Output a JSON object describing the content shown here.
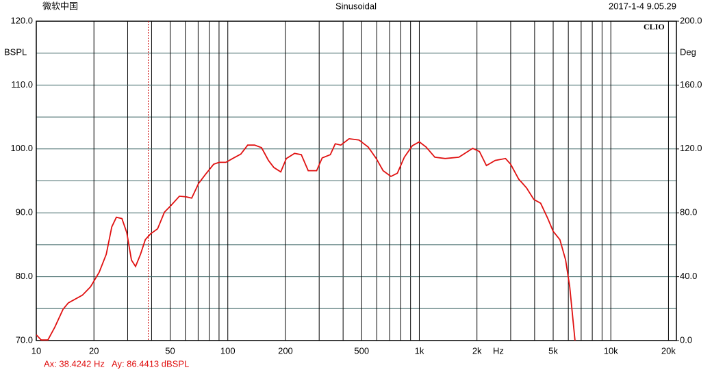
{
  "chart_data": {
    "type": "line",
    "header_left": "微软中国",
    "title": "Sinusoidal",
    "header_right": "2017-1-4 9.05.29",
    "brand": "CLIO",
    "ylabel": "BSPL",
    "y2label": "Deg",
    "xunit": "Hz",
    "log_x": true,
    "grid": true,
    "xlim": [
      10,
      22000
    ],
    "ylim": [
      70,
      120
    ],
    "y2lim": [
      0,
      200
    ],
    "xticks": [
      10,
      20,
      50,
      100,
      200,
      500,
      {
        "value": 1000,
        "label": "1k"
      },
      {
        "value": 2000,
        "label": "2k"
      },
      {
        "value": 5000,
        "label": "5k"
      },
      {
        "value": 10000,
        "label": "10k"
      },
      {
        "value": 20000,
        "label": "20k"
      }
    ],
    "xgrid_minor": [
      30,
      40,
      60,
      70,
      80,
      90,
      300,
      400,
      600,
      700,
      800,
      900,
      3000,
      4000,
      6000,
      7000,
      8000,
      9000
    ],
    "yticks": [
      {
        "value": 70,
        "label": "70.0"
      },
      {
        "value": 80,
        "label": "80.0"
      },
      {
        "value": 90,
        "label": "90.0"
      },
      {
        "value": 100,
        "label": "100.0"
      },
      {
        "value": 110,
        "label": "110.0"
      },
      {
        "value": 120,
        "label": "120.0"
      }
    ],
    "ygrid_minor": [
      75,
      85,
      95,
      105,
      115
    ],
    "y2ticks": [
      {
        "value": 0,
        "label": "0.0"
      },
      {
        "value": 40,
        "label": "40.0"
      },
      {
        "value": 80,
        "label": "80.0"
      },
      {
        "value": 120,
        "label": "120.0"
      },
      {
        "value": 160,
        "label": "160.0"
      },
      {
        "value": 200,
        "label": "200.0"
      }
    ],
    "cursor_x": 38.4242,
    "cursor_color": "#cc0000",
    "annotation": "Ax: 38.4242 Hz   Ay: 86.4413 dBSPL",
    "series": [
      {
        "name": "SPL",
        "color": "#e01010",
        "x": [
          10,
          10.6,
          11.5,
          12.5,
          13.8,
          14.7,
          17.4,
          19.2,
          21.3,
          23.2,
          24.8,
          26.2,
          28,
          29.7,
          31.4,
          33,
          35,
          37.1,
          39.5,
          43,
          46.7,
          50.7,
          55.9,
          60.7,
          64.8,
          70.4,
          76.4,
          84.4,
          90.1,
          97.8,
          106,
          117,
          127,
          138,
          150,
          163,
          174,
          189,
          202,
          223,
          242,
          263,
          291,
          311,
          343,
          364,
          389,
          430,
          484,
          541,
          596,
          647,
          711,
          768,
          835,
          920,
          1000,
          1085,
          1206,
          1364,
          1609,
          1900,
          2060,
          2240,
          2490,
          2820,
          3000,
          3300,
          3630,
          3960,
          4300,
          4690,
          5000,
          5420,
          5810,
          6100,
          6500
        ],
        "values": [
          70.9,
          70.1,
          70.1,
          72.1,
          74.9,
          75.9,
          77.1,
          78.4,
          80.7,
          83.5,
          87.8,
          89.3,
          89.1,
          86.9,
          82.6,
          81.6,
          83.5,
          85.8,
          86.7,
          87.5,
          90.1,
          91.2,
          92.6,
          92.5,
          92.3,
          94.6,
          96.0,
          97.6,
          97.9,
          97.9,
          98.5,
          99.2,
          100.6,
          100.6,
          100.2,
          98.2,
          97.1,
          96.4,
          98.5,
          99.3,
          99.1,
          96.6,
          96.6,
          98.6,
          99.1,
          100.8,
          100.6,
          101.6,
          101.4,
          100.3,
          98.5,
          96.6,
          95.7,
          96.2,
          98.7,
          100.5,
          101.1,
          100.3,
          98.7,
          98.5,
          98.7,
          100.1,
          99.6,
          97.4,
          98.2,
          98.5,
          97.6,
          95.3,
          93.9,
          92.1,
          91.5,
          89.1,
          87.1,
          85.8,
          82.6,
          78.4,
          70.0
        ]
      }
    ]
  }
}
